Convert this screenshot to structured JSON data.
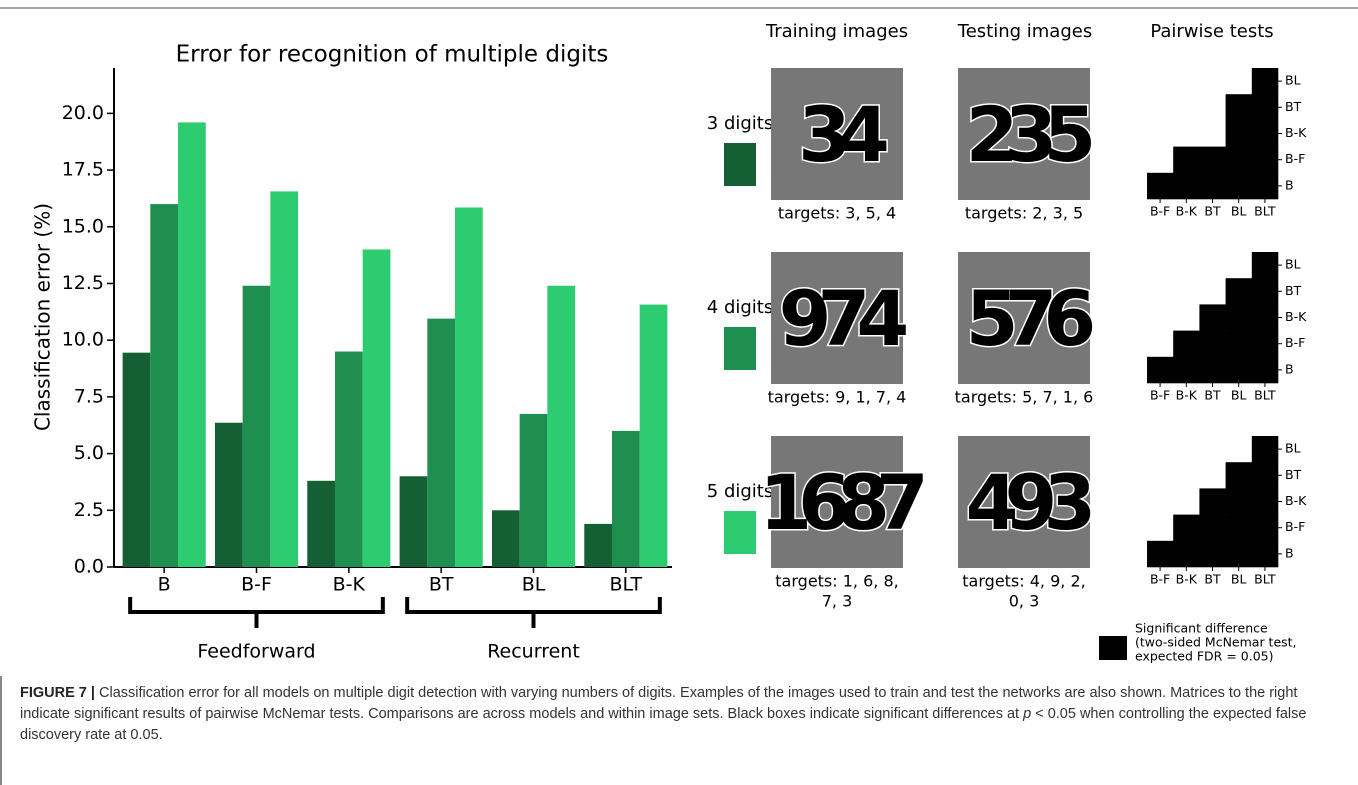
{
  "chart_data": {
    "type": "bar",
    "title": "Error for recognition of multiple digits",
    "y_label": "Classification error (%)",
    "categories": [
      "B",
      "B-F",
      "B-K",
      "BT",
      "BL",
      "BLT"
    ],
    "series": [
      {
        "name": "3 digits",
        "color": "#145f33",
        "values": [
          9.45,
          6.36,
          3.8,
          4.0,
          2.5,
          1.9
        ]
      },
      {
        "name": "4 digits",
        "color": "#1f8f4f",
        "values": [
          16.0,
          12.4,
          9.5,
          10.95,
          6.75,
          6.0
        ]
      },
      {
        "name": "5 digits",
        "color": "#2ecc71",
        "values": [
          19.6,
          16.56,
          14.0,
          15.85,
          12.4,
          11.57
        ]
      }
    ],
    "ylim": [
      0,
      22
    ],
    "yticks": [
      {
        "value": 0,
        "label": "0.0"
      },
      2.5,
      {
        "value": 5,
        "label": "5.0"
      },
      7.5,
      {
        "value": 10,
        "label": "10.0"
      },
      12.5,
      {
        "value": 15,
        "label": "15.0"
      },
      17.5,
      {
        "value": 20,
        "label": "20.0"
      }
    ],
    "groups": [
      {
        "name": "Feedforward",
        "members": [
          "B",
          "B-F",
          "B-K"
        ]
      },
      {
        "name": "Recurrent",
        "members": [
          "BT",
          "BL",
          "BLT"
        ]
      }
    ]
  },
  "panels": {
    "headers": [
      "Training images",
      "Testing images",
      "Pairwise tests"
    ],
    "pairwise_labels": {
      "x": [
        "B-F",
        "B-K",
        "BT",
        "BL",
        "BLT"
      ],
      "y": [
        "B",
        "B-F",
        "B-K",
        "BT",
        "BL"
      ]
    },
    "rows": [
      {
        "training": {
          "glyphs": "34",
          "targets": [
            "targets: 3, 5, 4"
          ]
        },
        "testing": {
          "glyphs": "235",
          "targets": [
            "targets: 2, 3, 5"
          ]
        },
        "pairwise": [
          [
            1,
            1,
            1,
            1,
            1
          ],
          [
            null,
            1,
            1,
            1,
            1
          ],
          [
            null,
            null,
            0,
            1,
            1
          ],
          [
            null,
            null,
            null,
            1,
            1
          ],
          [
            null,
            null,
            null,
            null,
            1
          ]
        ]
      },
      {
        "training": {
          "glyphs": "974",
          "targets": [
            "targets: 9, 1, 7, 4"
          ]
        },
        "testing": {
          "glyphs": "576",
          "targets": [
            "targets: 5, 7, 1, 6"
          ]
        },
        "pairwise": [
          [
            1,
            1,
            1,
            1,
            1
          ],
          [
            null,
            1,
            1,
            1,
            1
          ],
          [
            null,
            null,
            1,
            1,
            1
          ],
          [
            null,
            null,
            null,
            1,
            1
          ],
          [
            null,
            null,
            null,
            null,
            1
          ]
        ]
      },
      {
        "training": {
          "glyphs": "1687",
          "targets": [
            "targets: 1, 6, 8,",
            "7, 3"
          ]
        },
        "testing": {
          "glyphs": "493",
          "targets": [
            "targets: 4, 9, 2,",
            "0, 3"
          ]
        },
        "pairwise": [
          [
            1,
            1,
            1,
            1,
            1
          ],
          [
            null,
            1,
            1,
            1,
            1
          ],
          [
            null,
            null,
            1,
            1,
            1
          ],
          [
            null,
            null,
            null,
            1,
            1
          ],
          [
            null,
            null,
            null,
            null,
            1
          ]
        ]
      }
    ]
  },
  "significance_legend": {
    "color": "#000000",
    "lines": [
      "Significant difference",
      "(two-sided McNemar test,",
      "expected FDR = 0.05)"
    ]
  },
  "caption": {
    "label": "FIGURE 7 |",
    "text_before": "Classification error for all models on multiple digit detection with varying numbers of digits. Examples of the images used to train and test the networks are also shown. Matrices to the right indicate significant results of pairwise McNemar tests. Comparisons are across models and within image sets. Black boxes indicate significant differences at ",
    "p": "p",
    "text_after": " < 0.05 when controlling the expected false discovery rate at 0.05."
  }
}
